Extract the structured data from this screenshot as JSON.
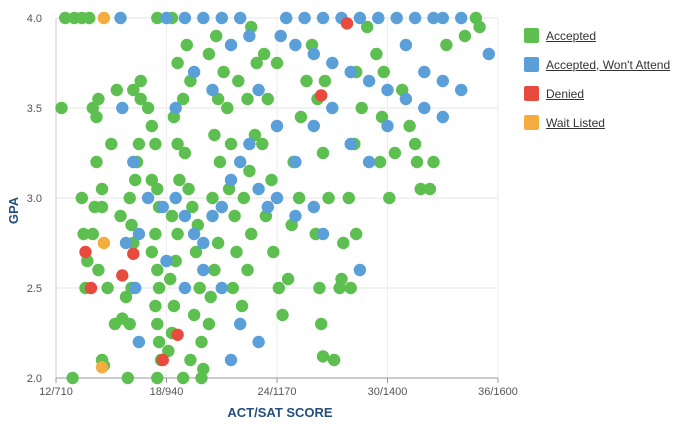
{
  "chart_data": {
    "type": "scatter",
    "xlabel": "ACT/SAT SCORE",
    "ylabel": "GPA",
    "xlim": [
      12,
      36
    ],
    "ylim": [
      2.0,
      4.0
    ],
    "x_ticks": [
      {
        "value": 12,
        "label": "12/710"
      },
      {
        "value": 18,
        "label": "18/940"
      },
      {
        "value": 24,
        "label": "24/1170"
      },
      {
        "value": 30,
        "label": "30/1400"
      },
      {
        "value": 36,
        "label": "36/1600"
      }
    ],
    "y_ticks": [
      {
        "value": 2.0,
        "label": "2.0"
      },
      {
        "value": 2.5,
        "label": "2.5"
      },
      {
        "value": 3.0,
        "label": "3.0"
      },
      {
        "value": 3.5,
        "label": "3.5"
      },
      {
        "value": 4.0,
        "label": "4.0"
      }
    ],
    "grid": true,
    "legend_position": "right",
    "series": [
      {
        "name": "Accepted",
        "color": "#5cbf4f",
        "points": [
          [
            12.3,
            3.5
          ],
          [
            14.0,
            3.5
          ],
          [
            14.2,
            3.45
          ],
          [
            14.3,
            3.55
          ],
          [
            15.0,
            3.3
          ],
          [
            15.3,
            3.6
          ],
          [
            14.2,
            3.2
          ],
          [
            14.5,
            3.05
          ],
          [
            14.5,
            2.95
          ],
          [
            13.4,
            3.0
          ],
          [
            13.5,
            2.8
          ],
          [
            13.7,
            2.65
          ],
          [
            14.0,
            2.8
          ],
          [
            13.6,
            2.5
          ],
          [
            14.3,
            2.6
          ],
          [
            14.8,
            2.5
          ],
          [
            14.5,
            2.1
          ],
          [
            14.6,
            2.07
          ],
          [
            15.2,
            2.3
          ],
          [
            15.6,
            2.33
          ],
          [
            16.0,
            2.3
          ],
          [
            15.8,
            2.45
          ],
          [
            16.1,
            2.5
          ],
          [
            16.2,
            2.75
          ],
          [
            16.1,
            2.85
          ],
          [
            16.0,
            3.0
          ],
          [
            16.3,
            3.1
          ],
          [
            16.4,
            3.2
          ],
          [
            16.5,
            3.3
          ],
          [
            16.6,
            3.55
          ],
          [
            16.2,
            3.6
          ],
          [
            16.6,
            3.65
          ],
          [
            17.0,
            3.5
          ],
          [
            17.2,
            3.4
          ],
          [
            17.4,
            3.3
          ],
          [
            17.2,
            3.1
          ],
          [
            17.5,
            3.05
          ],
          [
            17.6,
            2.95
          ],
          [
            17.4,
            2.8
          ],
          [
            17.2,
            2.7
          ],
          [
            17.5,
            2.6
          ],
          [
            17.6,
            2.5
          ],
          [
            17.4,
            2.4
          ],
          [
            17.5,
            2.3
          ],
          [
            17.6,
            2.2
          ],
          [
            17.7,
            2.1
          ],
          [
            17.5,
            2.0
          ],
          [
            18.1,
            2.15
          ],
          [
            18.3,
            2.25
          ],
          [
            18.4,
            2.4
          ],
          [
            18.2,
            2.55
          ],
          [
            18.5,
            2.65
          ],
          [
            18.6,
            2.8
          ],
          [
            18.3,
            2.9
          ],
          [
            18.7,
            3.1
          ],
          [
            18.6,
            3.3
          ],
          [
            18.4,
            3.45
          ],
          [
            18.9,
            3.55
          ],
          [
            18.6,
            3.75
          ],
          [
            19.1,
            3.85
          ],
          [
            19.3,
            3.65
          ],
          [
            19.0,
            3.25
          ],
          [
            19.2,
            3.05
          ],
          [
            19.4,
            2.95
          ],
          [
            19.6,
            2.7
          ],
          [
            19.8,
            2.5
          ],
          [
            19.5,
            2.35
          ],
          [
            19.9,
            2.2
          ],
          [
            19.3,
            2.1
          ],
          [
            20.0,
            2.05
          ],
          [
            20.3,
            2.3
          ],
          [
            20.4,
            2.45
          ],
          [
            20.6,
            2.6
          ],
          [
            20.8,
            2.75
          ],
          [
            20.5,
            3.0
          ],
          [
            20.9,
            3.2
          ],
          [
            20.6,
            3.35
          ],
          [
            20.8,
            3.55
          ],
          [
            20.3,
            3.8
          ],
          [
            20.7,
            3.9
          ],
          [
            21.1,
            3.7
          ],
          [
            21.3,
            3.5
          ],
          [
            21.5,
            3.3
          ],
          [
            21.4,
            3.05
          ],
          [
            21.7,
            2.9
          ],
          [
            21.8,
            2.7
          ],
          [
            21.6,
            2.5
          ],
          [
            22.1,
            2.4
          ],
          [
            22.4,
            2.6
          ],
          [
            22.6,
            2.8
          ],
          [
            22.2,
            3.0
          ],
          [
            22.5,
            3.15
          ],
          [
            22.8,
            3.35
          ],
          [
            22.4,
            3.55
          ],
          [
            22.9,
            3.75
          ],
          [
            22.6,
            3.95
          ],
          [
            23.3,
            3.8
          ],
          [
            23.5,
            3.55
          ],
          [
            23.2,
            3.3
          ],
          [
            23.7,
            3.1
          ],
          [
            23.4,
            2.9
          ],
          [
            23.8,
            2.7
          ],
          [
            24.1,
            2.5
          ],
          [
            24.3,
            2.35
          ],
          [
            24.6,
            2.55
          ],
          [
            24.8,
            2.85
          ],
          [
            25.2,
            3.0
          ],
          [
            24.9,
            3.2
          ],
          [
            25.3,
            3.45
          ],
          [
            25.6,
            3.65
          ],
          [
            25.9,
            3.85
          ],
          [
            26.2,
            3.55
          ],
          [
            26.5,
            3.25
          ],
          [
            26.8,
            3.0
          ],
          [
            26.1,
            2.8
          ],
          [
            26.3,
            2.5
          ],
          [
            26.4,
            2.3
          ],
          [
            26.5,
            2.12
          ],
          [
            27.1,
            2.1
          ],
          [
            27.4,
            2.5
          ],
          [
            27.6,
            2.75
          ],
          [
            27.9,
            3.0
          ],
          [
            28.2,
            3.3
          ],
          [
            28.6,
            3.5
          ],
          [
            28.3,
            3.7
          ],
          [
            28.9,
            3.95
          ],
          [
            29.4,
            3.8
          ],
          [
            29.7,
            3.45
          ],
          [
            29.6,
            3.2
          ],
          [
            30.1,
            3.0
          ],
          [
            30.4,
            3.25
          ],
          [
            30.8,
            3.6
          ],
          [
            31.2,
            3.4
          ],
          [
            31.6,
            3.2
          ],
          [
            31.8,
            3.05
          ],
          [
            32.5,
            3.2
          ],
          [
            33.2,
            3.85
          ],
          [
            34.2,
            3.9
          ],
          [
            34.8,
            4.0
          ],
          [
            35.0,
            3.95
          ],
          [
            12.5,
            4.0
          ],
          [
            13.0,
            4.0
          ],
          [
            13.4,
            4.0
          ],
          [
            13.8,
            4.0
          ],
          [
            12.9,
            2.0
          ],
          [
            15.9,
            2.0
          ],
          [
            19.9,
            2.0
          ],
          [
            18.9,
            2.0
          ],
          [
            18.3,
            4.0
          ],
          [
            17.5,
            4.0
          ],
          [
            28.3,
            2.8
          ],
          [
            28.0,
            2.5
          ],
          [
            27.5,
            2.55
          ],
          [
            32.3,
            3.05
          ],
          [
            31.5,
            3.3
          ],
          [
            29.8,
            3.7
          ],
          [
            14.1,
            2.95
          ],
          [
            15.5,
            2.9
          ],
          [
            19.7,
            2.85
          ],
          [
            21.9,
            3.65
          ],
          [
            24.0,
            3.75
          ],
          [
            26.6,
            3.65
          ]
        ]
      },
      {
        "name": "Accepted, Won't Attend",
        "color": "#5a9fd8",
        "points": [
          [
            15.5,
            4.0
          ],
          [
            18.0,
            4.0
          ],
          [
            19.0,
            4.0
          ],
          [
            20.0,
            4.0
          ],
          [
            21.0,
            4.0
          ],
          [
            22.0,
            4.0
          ],
          [
            24.5,
            4.0
          ],
          [
            25.5,
            4.0
          ],
          [
            26.5,
            4.0
          ],
          [
            27.5,
            4.0
          ],
          [
            28.5,
            4.0
          ],
          [
            29.5,
            4.0
          ],
          [
            30.5,
            4.0
          ],
          [
            31.5,
            4.0
          ],
          [
            32.5,
            4.0
          ],
          [
            33.0,
            4.0
          ],
          [
            34.0,
            4.0
          ],
          [
            24.2,
            3.9
          ],
          [
            25.0,
            3.85
          ],
          [
            26.0,
            3.8
          ],
          [
            27.0,
            3.75
          ],
          [
            28.0,
            3.7
          ],
          [
            29.0,
            3.65
          ],
          [
            30.0,
            3.6
          ],
          [
            31.0,
            3.55
          ],
          [
            32.0,
            3.5
          ],
          [
            33.0,
            3.45
          ],
          [
            35.5,
            3.8
          ],
          [
            23.0,
            3.6
          ],
          [
            24.0,
            3.4
          ],
          [
            25.0,
            3.2
          ],
          [
            26.0,
            3.4
          ],
          [
            27.0,
            3.5
          ],
          [
            28.0,
            3.3
          ],
          [
            29.0,
            3.2
          ],
          [
            30.0,
            3.4
          ],
          [
            31.0,
            3.85
          ],
          [
            32.0,
            3.7
          ],
          [
            33.0,
            3.65
          ],
          [
            34.0,
            3.6
          ],
          [
            15.6,
            3.5
          ],
          [
            16.2,
            3.2
          ],
          [
            17.0,
            3.0
          ],
          [
            17.8,
            2.95
          ],
          [
            18.5,
            3.0
          ],
          [
            19.0,
            2.9
          ],
          [
            19.5,
            2.8
          ],
          [
            20.0,
            2.75
          ],
          [
            20.5,
            2.9
          ],
          [
            21.0,
            2.95
          ],
          [
            21.5,
            3.1
          ],
          [
            22.0,
            3.2
          ],
          [
            22.5,
            3.3
          ],
          [
            23.0,
            3.05
          ],
          [
            23.5,
            2.95
          ],
          [
            24.0,
            3.0
          ],
          [
            25.0,
            2.9
          ],
          [
            26.0,
            2.95
          ],
          [
            18.0,
            2.65
          ],
          [
            19.0,
            2.5
          ],
          [
            20.0,
            2.6
          ],
          [
            21.0,
            2.5
          ],
          [
            22.0,
            2.3
          ],
          [
            23.0,
            2.2
          ],
          [
            16.5,
            2.8
          ],
          [
            15.8,
            2.75
          ],
          [
            16.3,
            2.5
          ],
          [
            16.5,
            2.2
          ],
          [
            21.5,
            2.1
          ],
          [
            26.5,
            2.8
          ],
          [
            28.5,
            2.6
          ],
          [
            19.5,
            3.7
          ],
          [
            20.5,
            3.6
          ],
          [
            21.5,
            3.85
          ],
          [
            22.5,
            3.9
          ],
          [
            18.5,
            3.5
          ]
        ]
      },
      {
        "name": "Denied",
        "color": "#e84a3d",
        "points": [
          [
            13.6,
            2.7
          ],
          [
            13.9,
            2.5
          ],
          [
            15.6,
            2.57
          ],
          [
            16.2,
            2.69
          ],
          [
            17.8,
            2.1
          ],
          [
            18.6,
            2.24
          ],
          [
            26.4,
            3.57
          ],
          [
            27.8,
            3.97
          ]
        ]
      },
      {
        "name": "Wait Listed",
        "color": "#f5ac3e",
        "points": [
          [
            14.6,
            4.0
          ],
          [
            14.6,
            2.75
          ],
          [
            14.5,
            2.06
          ]
        ]
      }
    ]
  }
}
